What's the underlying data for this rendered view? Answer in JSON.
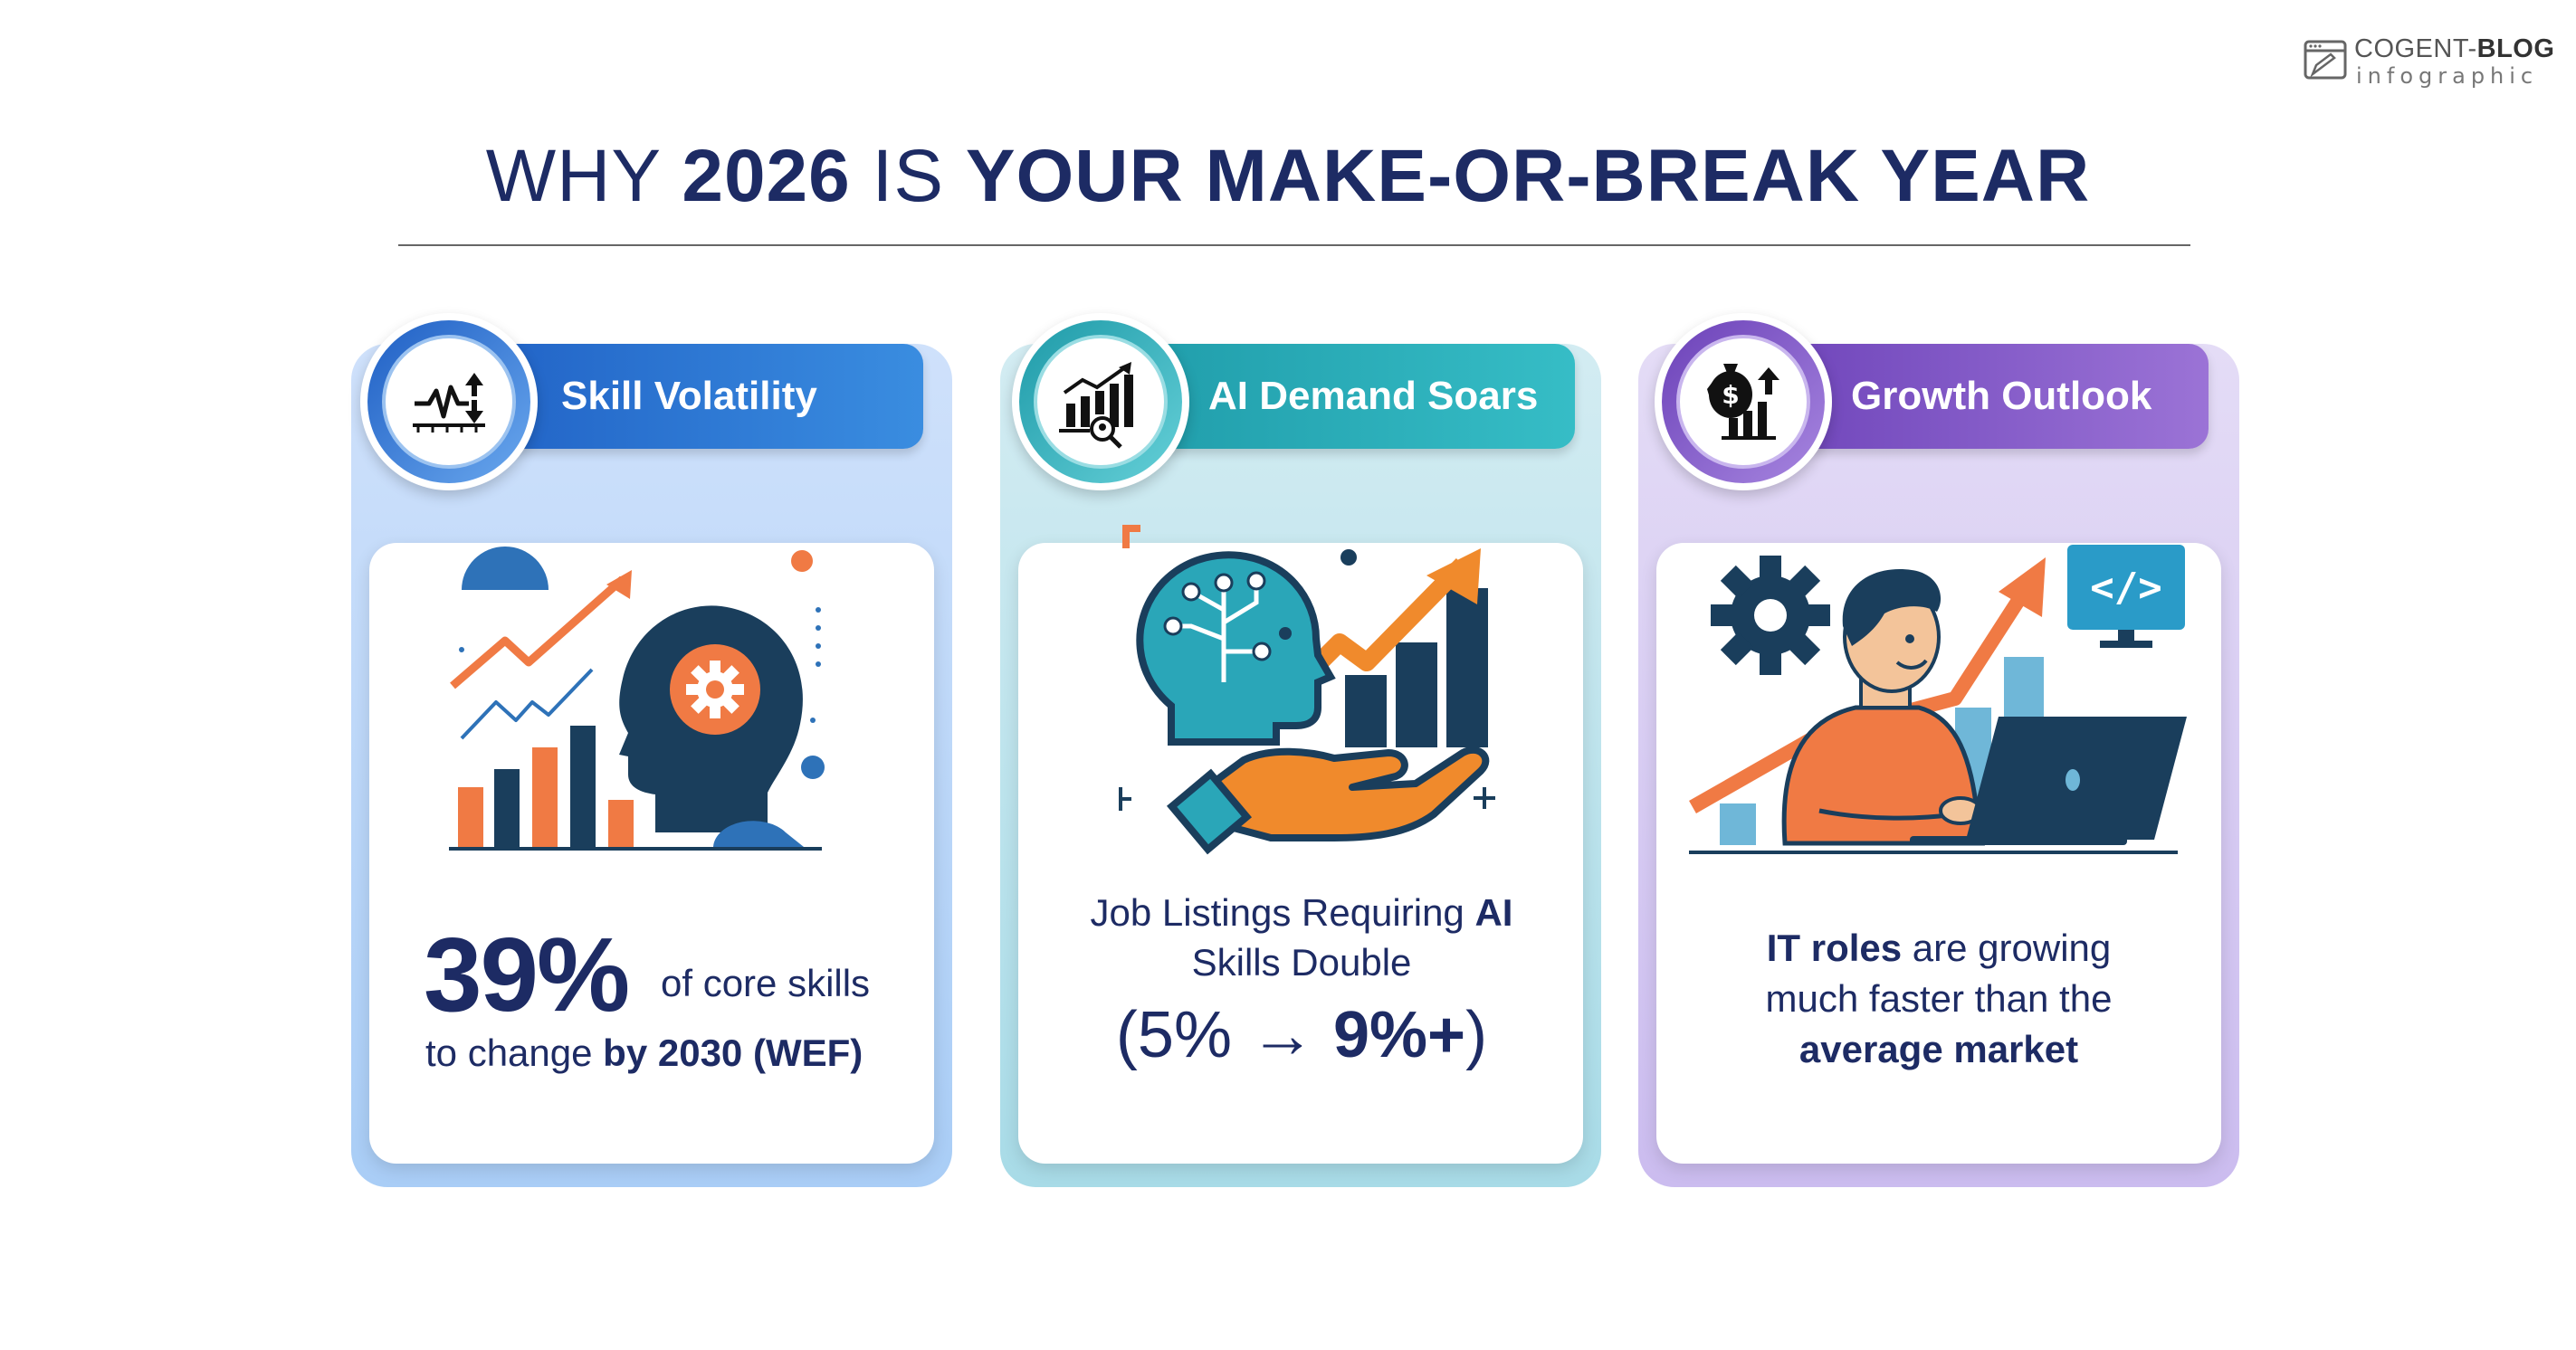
{
  "logo": {
    "name_part1": "COGENT-",
    "name_part2": "BLOG",
    "tagline": "infographic",
    "icon": "browser-pencil-icon"
  },
  "title": {
    "part1": "WHY ",
    "part2": "2026",
    "part3": " IS ",
    "part4": "YOUR MAKE-OR-BREAK YEAR"
  },
  "cards": [
    {
      "heading": "Skill Volatility",
      "icon": "volatility-chart-icon",
      "illustration": "head-gear-growth-chart",
      "stat": "39%",
      "stat_rest": "of core skills",
      "line2_plain": "to change ",
      "line2_bold": "by 2030 (WEF)",
      "accent": "#1f5fc4"
    },
    {
      "heading": "AI Demand Soars",
      "icon": "bar-chart-search-icon",
      "illustration": "ai-head-hand-growth-chart",
      "line1_plain": "Job Listings Requiring ",
      "line1_bold": "AI",
      "line2": "Skills Double",
      "range_open": "(5% → ",
      "range_bold": "9%+",
      "range_close": ")",
      "accent": "#1e9aa8"
    },
    {
      "heading": "Growth Outlook",
      "icon": "money-bag-growth-icon",
      "illustration": "developer-laptop-growth",
      "line1_bold": "IT roles",
      "line1_plain": " are growing",
      "line2": "much faster than the",
      "line3_bold": "average market",
      "accent": "#6b41b8"
    }
  ]
}
